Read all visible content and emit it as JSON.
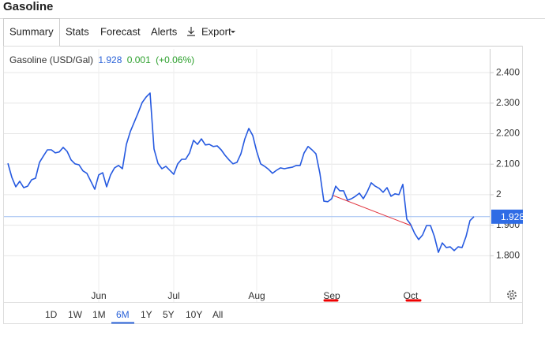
{
  "header": {
    "title": "Gasoline"
  },
  "tabs": [
    "Summary",
    "Stats",
    "Forecast",
    "Alerts",
    "Export"
  ],
  "quote": {
    "name": "Gasoline (USD/Gal)",
    "price": "1.928",
    "change": "0.001",
    "change_pct": "(+0.06%)"
  },
  "ranges": [
    "1D",
    "1W",
    "1M",
    "6M",
    "1Y",
    "5Y",
    "10Y",
    "All"
  ],
  "chart_data": {
    "type": "line",
    "categories": [
      null,
      null,
      null,
      null,
      null,
      null,
      null,
      null,
      null,
      null,
      null,
      null,
      null,
      null,
      null,
      null,
      null,
      null,
      null,
      null,
      null,
      null,
      null,
      "Jun",
      null,
      null,
      null,
      null,
      null,
      null,
      null,
      null,
      null,
      null,
      null,
      null,
      null,
      null,
      null,
      null,
      null,
      null,
      "Jul",
      null,
      null,
      null,
      null,
      null,
      null,
      null,
      null,
      null,
      null,
      null,
      null,
      null,
      null,
      null,
      null,
      null,
      null,
      null,
      null,
      "Aug",
      null,
      null,
      null,
      null,
      null,
      null,
      null,
      null,
      null,
      null,
      null,
      null,
      null,
      null,
      null,
      null,
      null,
      null,
      "Sep",
      null,
      null,
      null,
      null,
      null,
      null,
      null,
      null,
      null,
      null,
      null,
      null,
      null,
      null,
      null,
      null,
      null,
      null,
      null,
      "Oct",
      null,
      null,
      null,
      null,
      null,
      null,
      null,
      null,
      null,
      null,
      null,
      null,
      null,
      null,
      null,
      null
    ],
    "series": [
      {
        "name": "Gasoline (USD/Gal)",
        "color": "#2559e0",
        "values": [
          2.103,
          2.057,
          2.026,
          2.044,
          2.023,
          2.028,
          2.049,
          2.054,
          2.106,
          2.127,
          2.147,
          2.147,
          2.137,
          2.14,
          2.155,
          2.142,
          2.114,
          2.101,
          2.098,
          2.078,
          2.07,
          2.044,
          2.018,
          2.065,
          2.072,
          2.026,
          2.065,
          2.088,
          2.096,
          2.085,
          2.165,
          2.207,
          2.238,
          2.269,
          2.302,
          2.32,
          2.333,
          2.15,
          2.103,
          2.085,
          2.093,
          2.08,
          2.067,
          2.101,
          2.116,
          2.116,
          2.137,
          2.178,
          2.165,
          2.183,
          2.163,
          2.165,
          2.158,
          2.16,
          2.147,
          2.129,
          2.114,
          2.101,
          2.106,
          2.134,
          2.183,
          2.217,
          2.194,
          2.142,
          2.101,
          2.093,
          2.083,
          2.07,
          2.08,
          2.088,
          2.085,
          2.088,
          2.09,
          2.096,
          2.096,
          2.137,
          2.158,
          2.147,
          2.134,
          2.07,
          1.979,
          1.977,
          1.987,
          2.028,
          2.013,
          2.013,
          1.982,
          1.987,
          1.995,
          2.005,
          1.987,
          2.01,
          2.039,
          2.028,
          2.021,
          2.008,
          2.023,
          1.995,
          2.003,
          2.0,
          2.034,
          1.92,
          1.902,
          1.873,
          1.853,
          1.868,
          1.899,
          1.899,
          1.863,
          1.811,
          1.842,
          1.827,
          1.829,
          1.817,
          1.829,
          1.827,
          1.863,
          1.915,
          1.928
        ]
      }
    ],
    "current_value": 1.928,
    "ylim": [
      1.695,
      2.47
    ],
    "yticks": [
      {
        "value": 1.8,
        "label": "1.800"
      },
      {
        "value": 1.9,
        "label": "1.900"
      },
      2,
      {
        "value": 2.1,
        "label": "2.100"
      },
      {
        "value": 2.2,
        "label": "2.200"
      },
      {
        "value": 2.3,
        "label": "2.300"
      },
      {
        "value": 2.4,
        "label": "2.400"
      }
    ],
    "grid": true
  }
}
